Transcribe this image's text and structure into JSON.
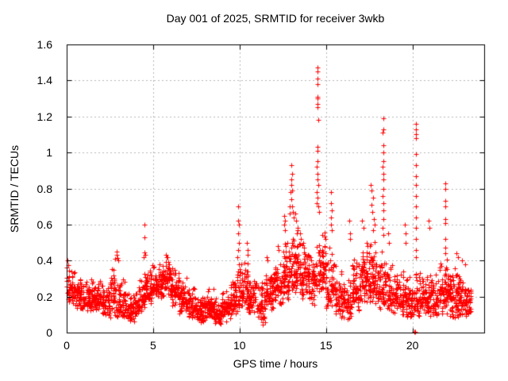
{
  "title": "Day 001 of 2025, SRMTID for receiver 3wkb",
  "axes": {
    "x": {
      "label": "GPS time / hours",
      "min": 0,
      "max": 24.15,
      "ticks": [
        0,
        5,
        10,
        15,
        20
      ],
      "tick_labels": [
        "0",
        "5",
        "10",
        "15",
        "20"
      ]
    },
    "y": {
      "label": "SRMTID / TECUs",
      "min": 0,
      "max": 1.6,
      "ticks": [
        0,
        0.2,
        0.4,
        0.6,
        0.8,
        1.0,
        1.2,
        1.4,
        1.6
      ],
      "tick_labels": [
        "0",
        "0.2",
        "0.4",
        "0.6",
        "0.8",
        "1",
        "1.2",
        "1.4",
        "1.6"
      ]
    }
  },
  "style": {
    "marker_color": "#ff0000",
    "grid_color": "#b8b8b8",
    "axis_color": "#000000",
    "background": "#ffffff"
  },
  "chart_data": {
    "type": "scatter",
    "title": "Day 001 of 2025, SRMTID for receiver 3wkb",
    "xlabel": "GPS time / hours",
    "ylabel": "SRMTID / TECUs",
    "xlim": [
      0,
      24.15
    ],
    "ylim": [
      0,
      1.6
    ],
    "grid": "dashed both axes at major ticks",
    "legend": "none",
    "marker": "plus",
    "series_name": "SRMTID",
    "data_span_hours": [
      0,
      23.4
    ],
    "envelope_bins_format": [
      "hour_start",
      "hour_end",
      "y_min",
      "y_max",
      "point_count"
    ],
    "envelope_bins": [
      [
        0.0,
        0.5,
        0.15,
        0.38,
        55
      ],
      [
        0.5,
        1.0,
        0.13,
        0.33,
        60
      ],
      [
        1.0,
        1.5,
        0.12,
        0.3,
        60
      ],
      [
        1.5,
        2.0,
        0.12,
        0.3,
        60
      ],
      [
        2.0,
        2.5,
        0.09,
        0.27,
        55
      ],
      [
        2.5,
        3.0,
        0.08,
        0.38,
        55
      ],
      [
        3.0,
        3.5,
        0.08,
        0.3,
        55
      ],
      [
        3.5,
        4.0,
        0.06,
        0.24,
        55
      ],
      [
        4.0,
        4.5,
        0.1,
        0.3,
        55
      ],
      [
        4.5,
        5.0,
        0.15,
        0.4,
        60
      ],
      [
        5.0,
        5.5,
        0.18,
        0.4,
        60
      ],
      [
        5.5,
        6.0,
        0.2,
        0.43,
        65
      ],
      [
        6.0,
        6.5,
        0.14,
        0.38,
        60
      ],
      [
        6.5,
        7.0,
        0.1,
        0.32,
        55
      ],
      [
        7.0,
        7.5,
        0.08,
        0.26,
        55
      ],
      [
        7.5,
        8.0,
        0.05,
        0.22,
        60
      ],
      [
        8.0,
        8.5,
        0.08,
        0.26,
        60
      ],
      [
        8.5,
        9.0,
        0.04,
        0.2,
        55
      ],
      [
        9.0,
        9.5,
        0.06,
        0.25,
        55
      ],
      [
        9.5,
        10.0,
        0.1,
        0.35,
        55
      ],
      [
        10.0,
        10.5,
        0.12,
        0.42,
        60
      ],
      [
        10.5,
        11.0,
        0.1,
        0.32,
        55
      ],
      [
        11.0,
        11.5,
        0.04,
        0.3,
        50
      ],
      [
        11.5,
        12.0,
        0.12,
        0.38,
        55
      ],
      [
        12.0,
        12.5,
        0.15,
        0.45,
        60
      ],
      [
        12.5,
        13.0,
        0.18,
        0.58,
        65
      ],
      [
        13.0,
        13.5,
        0.22,
        0.62,
        65
      ],
      [
        13.5,
        14.0,
        0.18,
        0.5,
        60
      ],
      [
        14.0,
        14.5,
        0.15,
        0.5,
        55
      ],
      [
        14.5,
        15.0,
        0.22,
        0.65,
        60
      ],
      [
        15.0,
        15.5,
        0.12,
        0.5,
        55
      ],
      [
        15.5,
        16.0,
        0.08,
        0.38,
        55
      ],
      [
        16.0,
        16.5,
        0.06,
        0.35,
        55
      ],
      [
        16.5,
        17.0,
        0.12,
        0.45,
        60
      ],
      [
        17.0,
        17.5,
        0.15,
        0.52,
        65
      ],
      [
        17.5,
        18.0,
        0.15,
        0.55,
        65
      ],
      [
        18.0,
        18.5,
        0.12,
        0.5,
        60
      ],
      [
        18.5,
        19.0,
        0.1,
        0.4,
        55
      ],
      [
        19.0,
        19.5,
        0.1,
        0.35,
        55
      ],
      [
        19.5,
        20.0,
        0.07,
        0.32,
        55
      ],
      [
        20.0,
        20.5,
        0.08,
        0.35,
        55
      ],
      [
        20.5,
        21.0,
        0.1,
        0.35,
        55
      ],
      [
        21.0,
        21.5,
        0.08,
        0.35,
        55
      ],
      [
        21.5,
        22.0,
        0.1,
        0.42,
        60
      ],
      [
        22.0,
        22.5,
        0.08,
        0.4,
        60
      ],
      [
        22.5,
        23.0,
        0.08,
        0.35,
        60
      ],
      [
        23.0,
        23.4,
        0.08,
        0.3,
        45
      ]
    ],
    "outliers": [
      [
        0.05,
        0.4
      ],
      [
        0.1,
        0.375
      ],
      [
        0.02,
        0.36
      ],
      [
        0.15,
        0.345
      ],
      [
        2.82,
        0.41
      ],
      [
        2.88,
        0.45
      ],
      [
        2.9,
        0.43
      ],
      [
        2.95,
        0.415
      ],
      [
        3.0,
        0.4
      ],
      [
        4.5,
        0.6
      ],
      [
        4.52,
        0.53
      ],
      [
        4.5,
        0.445
      ],
      [
        4.55,
        0.43
      ],
      [
        4.45,
        0.42
      ],
      [
        5.75,
        0.43
      ],
      [
        5.85,
        0.42
      ],
      [
        9.9,
        0.7
      ],
      [
        9.92,
        0.62
      ],
      [
        9.95,
        0.6
      ],
      [
        9.9,
        0.55
      ],
      [
        9.95,
        0.5
      ],
      [
        9.92,
        0.46
      ],
      [
        9.88,
        0.42
      ],
      [
        9.95,
        0.38
      ],
      [
        10.42,
        0.5
      ],
      [
        10.48,
        0.46
      ],
      [
        10.45,
        0.43
      ],
      [
        11.55,
        0.42
      ],
      [
        11.6,
        0.4
      ],
      [
        12.2,
        0.48
      ],
      [
        12.25,
        0.46
      ],
      [
        12.6,
        0.65
      ],
      [
        12.62,
        0.62
      ],
      [
        12.58,
        0.6
      ],
      [
        12.62,
        0.57
      ],
      [
        12.88,
        0.7
      ],
      [
        12.92,
        0.66
      ],
      [
        13.0,
        0.93
      ],
      [
        13.02,
        0.88
      ],
      [
        12.98,
        0.85
      ],
      [
        13.0,
        0.82
      ],
      [
        13.05,
        0.79
      ],
      [
        12.95,
        0.78
      ],
      [
        13.0,
        0.74
      ],
      [
        13.05,
        0.7
      ],
      [
        13.1,
        0.67
      ],
      [
        13.15,
        0.64
      ],
      [
        13.2,
        0.66
      ],
      [
        13.25,
        0.62
      ],
      [
        13.5,
        0.55
      ],
      [
        13.55,
        0.52
      ],
      [
        14.5,
        1.47
      ],
      [
        14.53,
        1.45
      ],
      [
        14.5,
        1.41
      ],
      [
        14.52,
        1.38
      ],
      [
        14.5,
        1.31
      ],
      [
        14.53,
        1.3
      ],
      [
        14.5,
        1.27
      ],
      [
        14.52,
        1.25
      ],
      [
        14.55,
        1.18
      ],
      [
        14.5,
        1.03
      ],
      [
        14.52,
        1.01
      ],
      [
        14.5,
        0.95
      ],
      [
        14.48,
        0.92
      ],
      [
        14.53,
        0.88
      ],
      [
        14.5,
        0.85
      ],
      [
        14.55,
        0.82
      ],
      [
        14.48,
        0.78
      ],
      [
        14.52,
        0.75
      ],
      [
        14.45,
        0.72
      ],
      [
        14.55,
        0.7
      ],
      [
        14.58,
        0.67
      ],
      [
        15.28,
        0.78
      ],
      [
        15.3,
        0.72
      ],
      [
        15.32,
        0.68
      ],
      [
        15.28,
        0.64
      ],
      [
        15.3,
        0.6
      ],
      [
        15.32,
        0.57
      ],
      [
        16.35,
        0.62
      ],
      [
        16.38,
        0.55
      ],
      [
        16.4,
        0.52
      ],
      [
        17.1,
        0.62
      ],
      [
        17.15,
        0.58
      ],
      [
        17.6,
        0.82
      ],
      [
        17.65,
        0.79
      ],
      [
        17.7,
        0.75
      ],
      [
        17.62,
        0.71
      ],
      [
        17.68,
        0.67
      ],
      [
        17.75,
        0.63
      ],
      [
        17.8,
        0.6
      ],
      [
        17.72,
        0.57
      ],
      [
        18.3,
        1.19
      ],
      [
        18.32,
        1.13
      ],
      [
        18.28,
        1.11
      ],
      [
        18.3,
        1.04
      ],
      [
        18.33,
        1.0
      ],
      [
        18.3,
        0.95
      ],
      [
        18.28,
        0.92
      ],
      [
        18.3,
        0.88
      ],
      [
        18.32,
        0.85
      ],
      [
        18.3,
        0.8
      ],
      [
        18.28,
        0.76
      ],
      [
        18.3,
        0.72
      ],
      [
        18.33,
        0.68
      ],
      [
        18.3,
        0.63
      ],
      [
        18.28,
        0.58
      ],
      [
        18.3,
        0.54
      ],
      [
        18.6,
        0.55
      ],
      [
        18.62,
        0.5
      ],
      [
        19.58,
        0.6
      ],
      [
        19.62,
        0.55
      ],
      [
        19.6,
        0.5
      ],
      [
        20.2,
        1.16
      ],
      [
        20.22,
        1.13
      ],
      [
        20.18,
        1.1
      ],
      [
        20.2,
        1.08
      ],
      [
        20.2,
        0.99
      ],
      [
        20.22,
        0.93
      ],
      [
        20.18,
        0.87
      ],
      [
        20.2,
        0.82
      ],
      [
        20.22,
        0.76
      ],
      [
        20.18,
        0.7
      ],
      [
        20.2,
        0.64
      ],
      [
        20.22,
        0.58
      ],
      [
        20.2,
        0.52
      ],
      [
        20.18,
        0.46
      ],
      [
        20.2,
        0.42
      ],
      [
        20.12,
        0.005
      ],
      [
        20.16,
        0.005
      ],
      [
        20.95,
        0.62
      ],
      [
        21.0,
        0.58
      ],
      [
        21.88,
        0.83
      ],
      [
        21.9,
        0.8
      ],
      [
        21.92,
        0.73
      ],
      [
        21.88,
        0.7
      ],
      [
        21.9,
        0.63
      ],
      [
        21.92,
        0.61
      ],
      [
        21.88,
        0.52
      ],
      [
        21.9,
        0.47
      ],
      [
        21.9,
        0.44
      ],
      [
        22.55,
        0.44
      ],
      [
        22.65,
        0.42
      ],
      [
        22.85,
        0.4
      ],
      [
        23.05,
        0.38
      ]
    ]
  }
}
